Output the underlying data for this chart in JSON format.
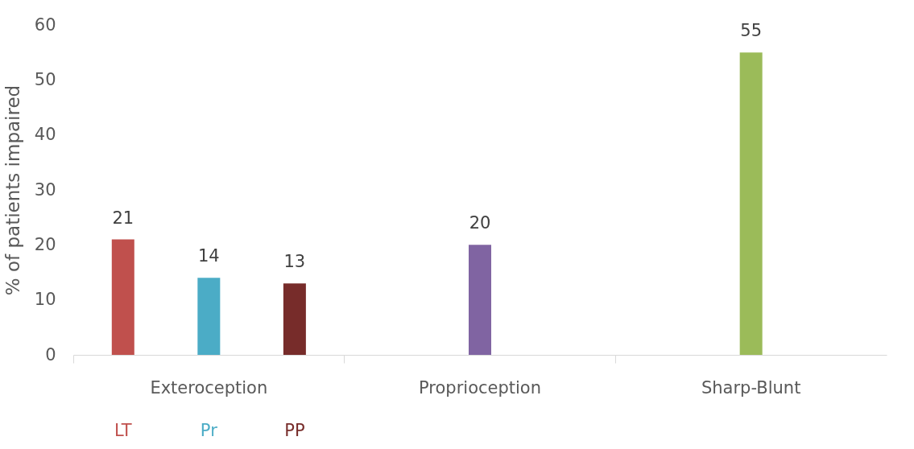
{
  "chart_data": {
    "type": "bar",
    "ylabel": "% of patients impaired",
    "categories": [
      "Exteroception",
      "Proprioception",
      "Sharp-Blunt"
    ],
    "series": [
      {
        "name": "LT",
        "color": "#c0504d",
        "values": [
          21,
          null,
          null
        ]
      },
      {
        "name": "Pr",
        "color": "#4bacc6",
        "colors": [
          "#4bacc6",
          "#8064a2",
          "#9bbb59"
        ],
        "values": [
          14,
          20,
          55
        ]
      },
      {
        "name": "PP",
        "color": "#772c2a",
        "values": [
          13,
          null,
          null
        ]
      }
    ],
    "ylim": [
      0,
      60
    ],
    "yticks": [
      0,
      10,
      20,
      30,
      40,
      50,
      60
    ],
    "grid": false,
    "data_labels": true
  }
}
